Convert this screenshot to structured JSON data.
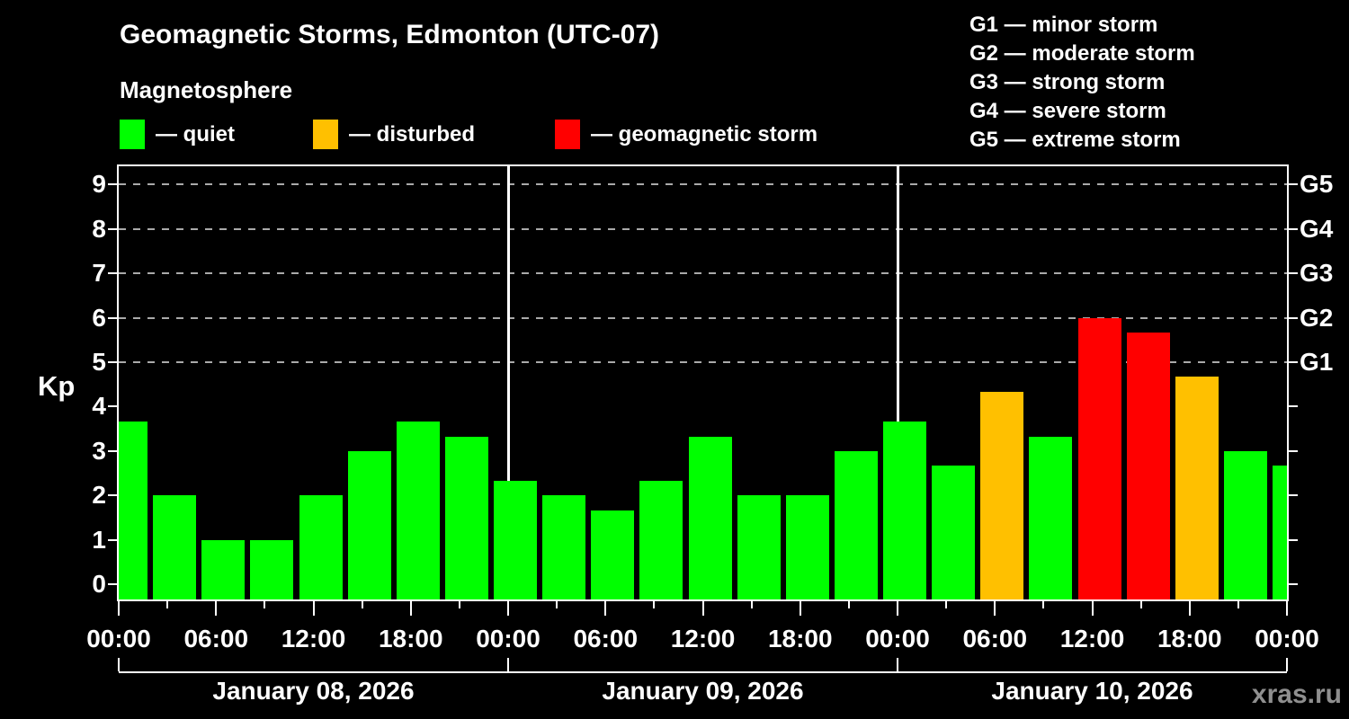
{
  "header": {
    "title": "Geomagnetic Storms, Edmonton (UTC-07)",
    "subtitle": "Magnetosphere",
    "legend": [
      {
        "label": "quiet",
        "color": "#00ff00"
      },
      {
        "label": "disturbed",
        "color": "#ffc000"
      },
      {
        "label": "geomagnetic storm",
        "color": "#ff0000"
      }
    ],
    "g_legend": [
      {
        "code": "G1",
        "desc": "minor storm"
      },
      {
        "code": "G2",
        "desc": "moderate storm"
      },
      {
        "code": "G3",
        "desc": "strong storm"
      },
      {
        "code": "G4",
        "desc": "severe storm"
      },
      {
        "code": "G5",
        "desc": "extreme storm"
      }
    ]
  },
  "watermark": "xras.ru",
  "chart_data": {
    "type": "bar",
    "title": "Geomagnetic Storms, Edmonton (UTC-07)",
    "ylabel": "Kp",
    "ylim": [
      0,
      9
    ],
    "y_ticks": [
      0,
      1,
      2,
      3,
      4,
      5,
      6,
      7,
      8,
      9
    ],
    "grid_levels": [
      5,
      6,
      7,
      8,
      9
    ],
    "right_axis": [
      {
        "label": "G1",
        "kp": 5
      },
      {
        "label": "G2",
        "kp": 6
      },
      {
        "label": "G3",
        "kp": 7
      },
      {
        "label": "G4",
        "kp": 8
      },
      {
        "label": "G5",
        "kp": 9
      }
    ],
    "x_axis_span_hours": 72,
    "bar_interval_hours": 3,
    "x_time_label_pattern": [
      "00:00",
      "06:00",
      "12:00",
      "18:00"
    ],
    "days": [
      {
        "date": "January 08, 2026",
        "values": [
          3.67,
          2.0,
          1.0,
          1.0,
          2.0,
          3.0,
          3.67,
          3.33
        ]
      },
      {
        "date": "January 09, 2026",
        "values": [
          2.33,
          2.0,
          1.67,
          2.33,
          3.33,
          2.0,
          2.0,
          3.0
        ]
      },
      {
        "date": "January 10, 2026",
        "values": [
          3.67,
          2.67,
          4.33,
          3.33,
          6.0,
          5.67,
          4.67,
          3.0
        ]
      }
    ],
    "next_period_partial_value": 2.67,
    "colors": {
      "quiet": "#00ff00",
      "disturbed": "#ffc000",
      "storm": "#ff0000"
    },
    "color_rules": {
      "quiet_below_kp": 4,
      "disturbed_below_kp": 5
    },
    "legend_position": "top",
    "grid": "dashed horizontal at G-storm levels only",
    "background": "#000000"
  }
}
